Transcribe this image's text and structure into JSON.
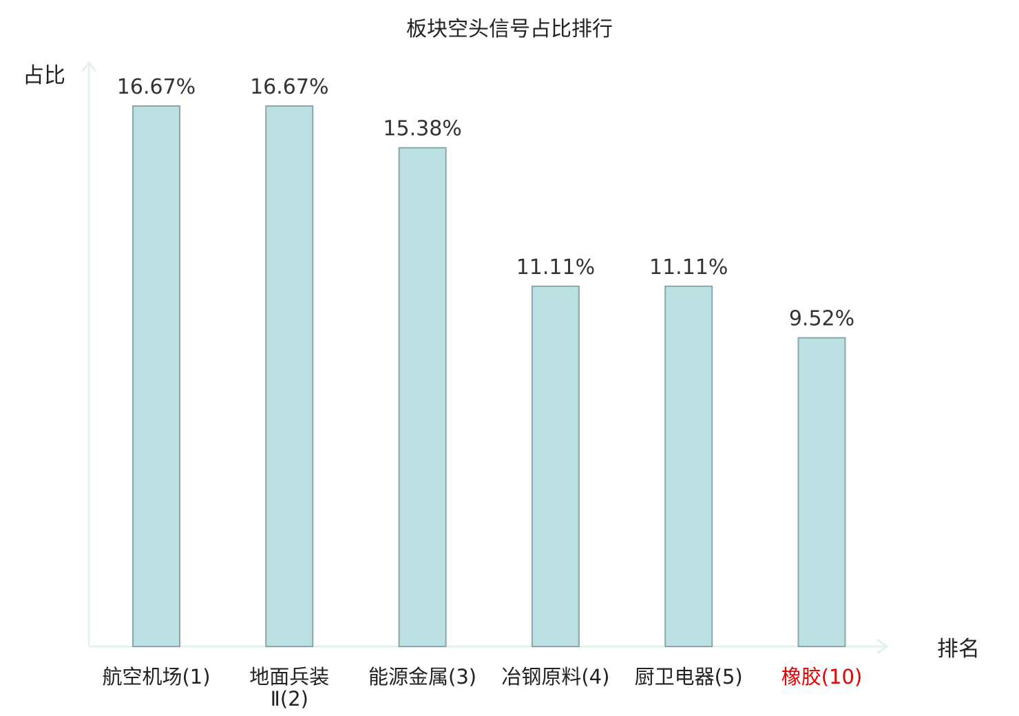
{
  "chart_data": {
    "type": "bar",
    "title": "板块空头信号占比排行",
    "ylabel": "占比",
    "xlabel": "排名",
    "categories": [
      {
        "name_lines": [
          "航空机场",
          "(1)"
        ],
        "label": "航空机场(1)"
      },
      {
        "name_lines": [
          "地面兵装",
          "Ⅱ(2)"
        ],
        "label": "地面兵装Ⅱ(2)"
      },
      {
        "name_lines": [
          "能源金属",
          "(3)"
        ],
        "label": "能源金属(3)"
      },
      {
        "name_lines": [
          "冶钢原料",
          "(4)"
        ],
        "label": "冶钢原料(4)"
      },
      {
        "name_lines": [
          "厨卫电器",
          "(5)"
        ],
        "label": "厨卫电器(5)"
      },
      {
        "name_lines": [
          "橡胶",
          "(10)"
        ],
        "label": "橡胶(10)"
      }
    ],
    "values": [
      16.67,
      16.67,
      15.38,
      11.11,
      11.11,
      9.52
    ],
    "value_labels": [
      "16.67%",
      "16.67%",
      "15.38%",
      "11.11%",
      "11.11%",
      "9.52%"
    ],
    "highlight_index": 5,
    "ylim": [
      0,
      17.5
    ],
    "grid": false,
    "legend": "none",
    "colors": {
      "bar_fill": "#bde0e2",
      "bar_stroke": "#86a8aa",
      "axis": "#e3f2ef",
      "highlight_text": "#e60000"
    }
  }
}
